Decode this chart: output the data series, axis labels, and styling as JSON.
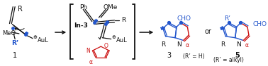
{
  "background_color": "#ffffff",
  "blue": "#2255cc",
  "red": "#cc1111",
  "black": "#111111",
  "dpi": 100,
  "figw": 3.78,
  "figh": 0.94,
  "compound1_R_text": "R",
  "compound1_MeO_text": "MeO",
  "compound1_Rp_text": "R’",
  "compound1_AuL_text": "AuL",
  "compound1_label": "1",
  "interm_In3_text": "In-3",
  "interm_Ph_text": "Ph",
  "interm_OMe_text": "OMe",
  "interm_R_text": "R",
  "interm_AuL_text": "AuL",
  "iso_N_text": "N",
  "iso_O_text": "O",
  "iso_alpha_text": "α",
  "prod3_CHO_text": "CHO",
  "prod3_R_text": "R",
  "prod3_N_text": "N",
  "prod3_alpha_text": "α",
  "prod3_label": "3",
  "prod3_sub": "(R’ = H)",
  "or_text": "or",
  "prod5_CHO_text": "CHO",
  "prod5_Rp_text": "R’",
  "prod5_R_text": "R",
  "prod5_N_text": "N",
  "prod5_alpha_text": "α",
  "prod5_label": "5",
  "prod5_sub": "(R’ = alkyl)"
}
